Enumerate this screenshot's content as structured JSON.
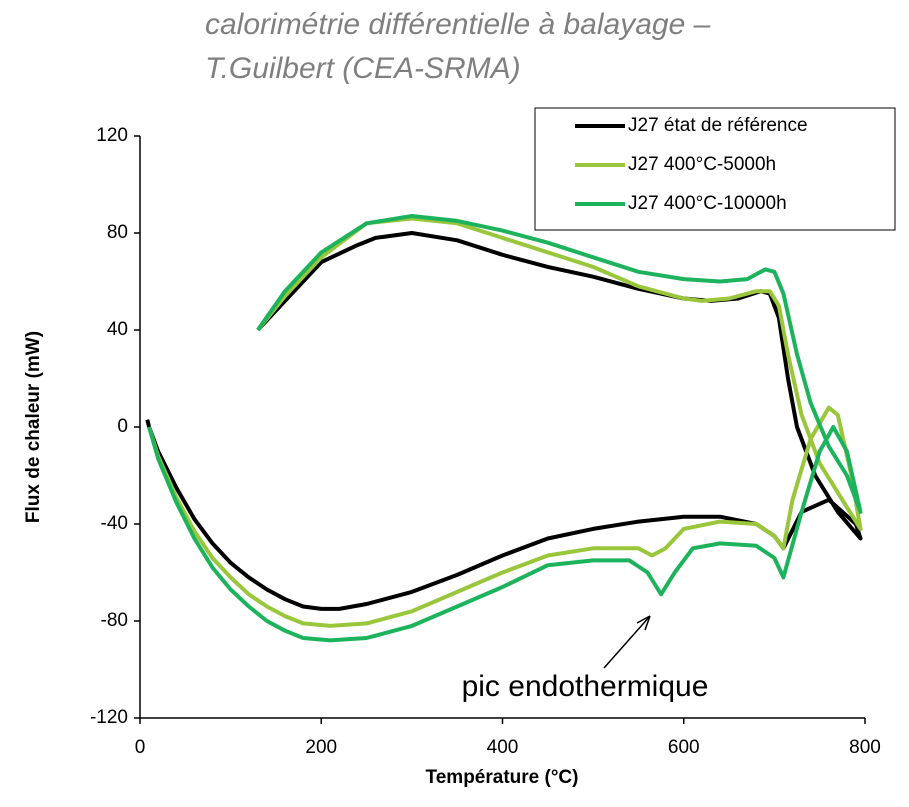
{
  "chart_data": {
    "type": "line",
    "title": [
      "calorimétrie différentielle à balayage –",
      "T.Guilbert (CEA-SRMA)"
    ],
    "xlabel": "Température (°C)",
    "ylabel": "Flux de chaleur (mW)",
    "annotation": "pic endothermique",
    "xlim": [
      0,
      800
    ],
    "xticks": [
      0,
      200,
      400,
      600,
      800
    ],
    "ylim": [
      -120,
      120
    ],
    "yticks": [
      -120,
      -80,
      -40,
      0,
      40,
      80,
      120
    ],
    "legend": "upper right",
    "series": [
      {
        "name": "J27 état de référence",
        "color": "#000000",
        "x": [
          8,
          10,
          20,
          40,
          60,
          80,
          100,
          120,
          140,
          160,
          180,
          200,
          220,
          250,
          300,
          350,
          400,
          450,
          500,
          550,
          600,
          640,
          680,
          700,
          710,
          730,
          760,
          790,
          795,
          770,
          745,
          725,
          715,
          705,
          695,
          685,
          660,
          630,
          600,
          550,
          500,
          450,
          400,
          350,
          300,
          260,
          240,
          200,
          160,
          130
        ],
        "values": [
          3,
          0,
          -10,
          -25,
          -38,
          -48,
          -56,
          -62,
          -67,
          -71,
          -74,
          -75,
          -75,
          -73,
          -68,
          -61,
          -53,
          -46,
          -42,
          -39,
          -37,
          -37,
          -40,
          -45,
          -50,
          -35,
          -30,
          -40,
          -46,
          -35,
          -20,
          0,
          20,
          45,
          55,
          56,
          53,
          52,
          53,
          57,
          62,
          66,
          71,
          77,
          80,
          78,
          75,
          68,
          52,
          40
        ]
      },
      {
        "name": "J27 400°C-5000h",
        "color": "#99c63a",
        "x": [
          10,
          20,
          40,
          60,
          80,
          100,
          120,
          140,
          160,
          180,
          210,
          250,
          300,
          350,
          400,
          450,
          500,
          550,
          565,
          580,
          600,
          640,
          680,
          700,
          710,
          720,
          740,
          760,
          770,
          785,
          795,
          775,
          750,
          730,
          715,
          705,
          695,
          680,
          650,
          620,
          600,
          550,
          500,
          450,
          400,
          350,
          300,
          250,
          200,
          160,
          130
        ],
        "values": [
          0,
          -12,
          -29,
          -43,
          -54,
          -62,
          -69,
          -74,
          -78,
          -81,
          -82,
          -81,
          -76,
          -68,
          -60,
          -53,
          -50,
          -50,
          -53,
          -50,
          -42,
          -39,
          -40,
          -45,
          -50,
          -30,
          -5,
          8,
          5,
          -20,
          -42,
          -30,
          -15,
          5,
          30,
          50,
          56,
          56,
          53,
          52,
          53,
          58,
          66,
          72,
          78,
          84,
          86,
          84,
          70,
          54,
          40
        ]
      },
      {
        "name": "J27 400°C-10000h",
        "color": "#1db35c",
        "x": [
          10,
          20,
          40,
          60,
          80,
          100,
          120,
          140,
          160,
          180,
          210,
          250,
          300,
          350,
          400,
          450,
          500,
          540,
          560,
          575,
          590,
          610,
          640,
          680,
          700,
          710,
          730,
          750,
          765,
          780,
          795,
          780,
          760,
          740,
          725,
          710,
          700,
          690,
          670,
          640,
          600,
          550,
          500,
          450,
          400,
          350,
          300,
          250,
          200,
          160,
          130
        ],
        "values": [
          0,
          -13,
          -31,
          -46,
          -58,
          -67,
          -74,
          -80,
          -84,
          -87,
          -88,
          -87,
          -82,
          -74,
          -66,
          -57,
          -55,
          -55,
          -60,
          -69,
          -60,
          -50,
          -48,
          -49,
          -54,
          -62,
          -35,
          -10,
          0,
          -10,
          -35,
          -20,
          -8,
          10,
          30,
          55,
          64,
          65,
          61,
          60,
          61,
          64,
          70,
          76,
          81,
          85,
          87,
          84,
          72,
          56,
          40
        ]
      }
    ]
  }
}
